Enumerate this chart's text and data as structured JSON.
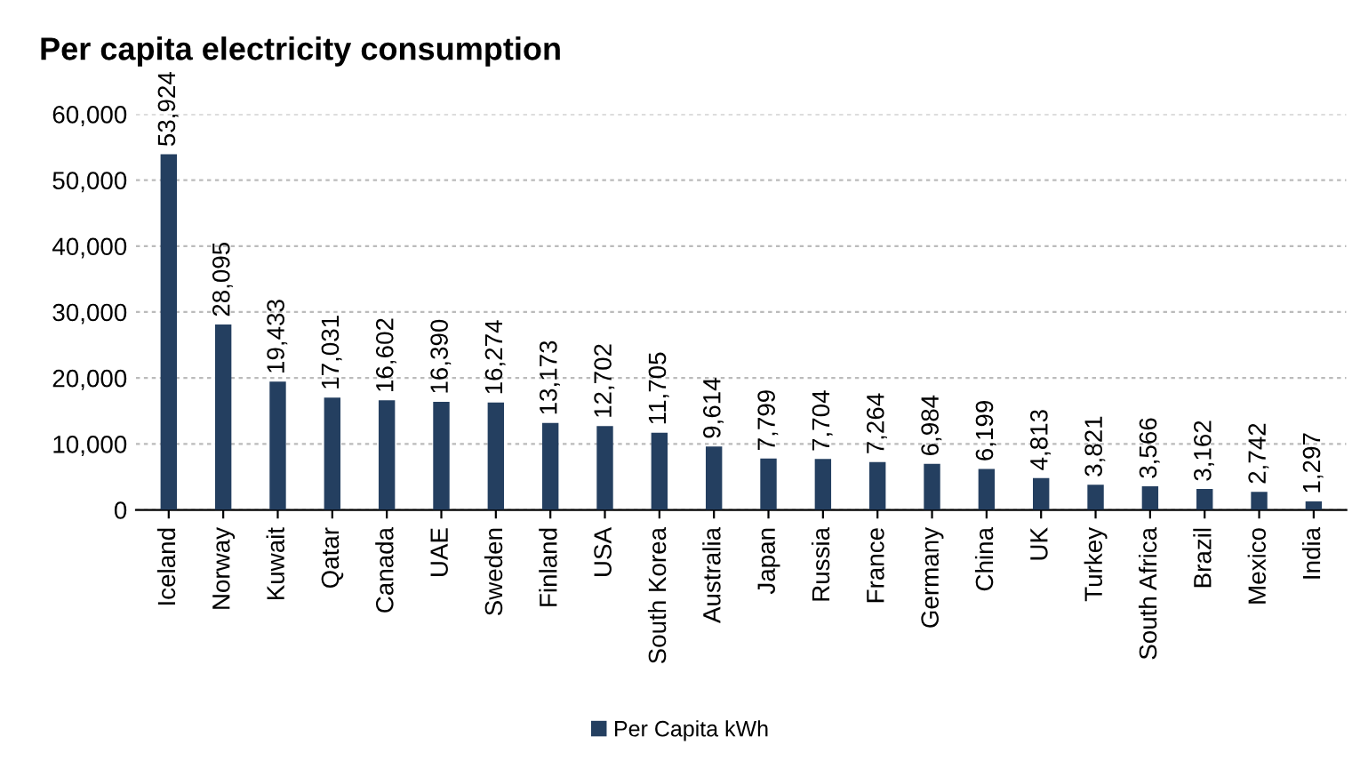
{
  "chart_data": {
    "type": "bar",
    "title": "Per capita electricity consumption",
    "categories": [
      "Iceland",
      "Norway",
      "Kuwait",
      "Qatar",
      "Canada",
      "UAE",
      "Sweden",
      "Finland",
      "USA",
      "South Korea",
      "Australia",
      "Japan",
      "Russia",
      "France",
      "Germany",
      "China",
      "UK",
      "Turkey",
      "South Africa",
      "Brazil",
      "Mexico",
      "India"
    ],
    "series": [
      {
        "name": "Per Capita kWh",
        "color": "#243f60",
        "values": [
          53924,
          28095,
          19433,
          17031,
          16602,
          16390,
          16274,
          13173,
          12702,
          11705,
          9614,
          7799,
          7704,
          7264,
          6984,
          6199,
          4813,
          3821,
          3566,
          3162,
          2742,
          1297
        ]
      }
    ],
    "ylim": [
      0,
      60000
    ],
    "yticks": [
      {
        "value": 0,
        "label": "0"
      },
      {
        "value": 10000,
        "label": "10,000"
      },
      {
        "value": 20000,
        "label": "20,000"
      },
      {
        "value": 30000,
        "label": "30,000"
      },
      {
        "value": 40000,
        "label": "40,000"
      },
      {
        "value": 50000,
        "label": "50,000"
      },
      {
        "value": 60000,
        "label": "60,000"
      }
    ],
    "value_labels": [
      "53,924",
      "28,095",
      "19,433",
      "17,031",
      "16,602",
      "16,390",
      "16,274",
      "13,173",
      "12,702",
      "11,705",
      "9,614",
      "7,799",
      "7,704",
      "7,264",
      "6,984",
      "6,199",
      "4,813",
      "3,821",
      "3,566",
      "3,162",
      "2,742",
      "1,297"
    ],
    "grid": "y",
    "legend": "bottom"
  }
}
